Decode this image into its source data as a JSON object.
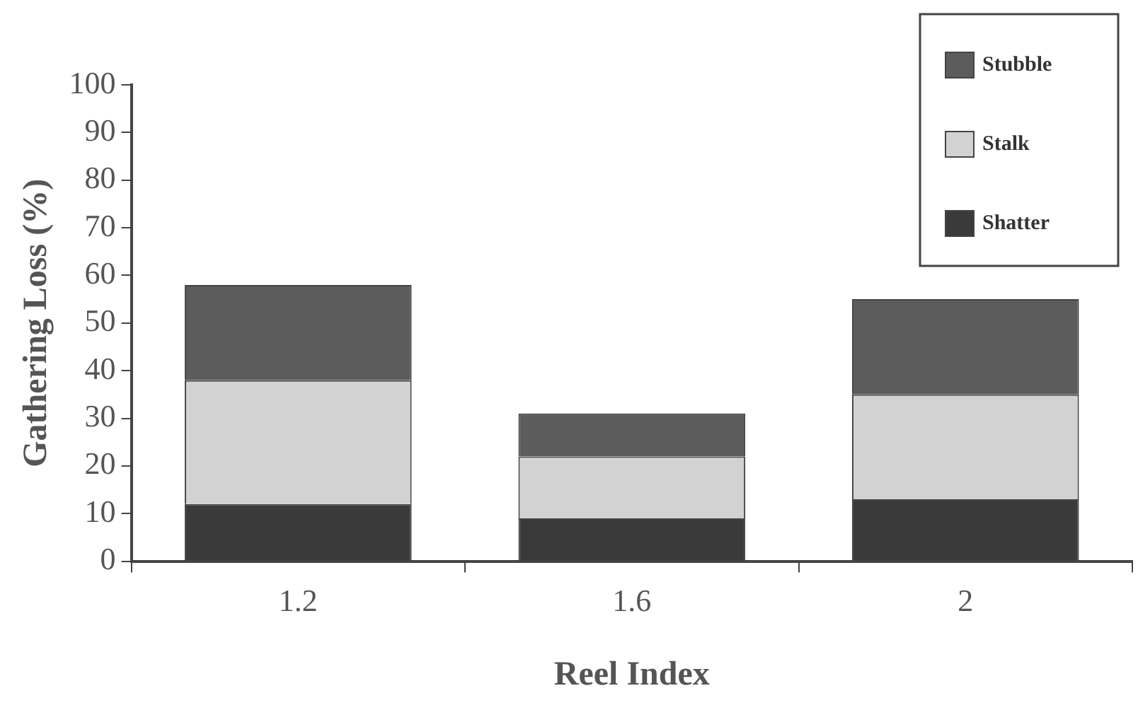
{
  "chart_data": {
    "type": "bar",
    "stacked": true,
    "xlabel": "Reel Index",
    "ylabel": "Gathering Loss (%)",
    "categories": [
      "1.2",
      "1.6",
      "2"
    ],
    "series": [
      {
        "name": "Shatter",
        "color": "#3a3a3a",
        "values": [
          12,
          9,
          13
        ]
      },
      {
        "name": "Stalk",
        "color": "#d2d2d2",
        "values": [
          26,
          13,
          22
        ]
      },
      {
        "name": "Stubble",
        "color": "#5c5c5c",
        "values": [
          20,
          9,
          20
        ]
      }
    ],
    "ylim": [
      0,
      100
    ],
    "yticks": [
      0,
      10,
      20,
      30,
      40,
      50,
      60,
      70,
      80,
      90,
      100
    ],
    "legend": "top right",
    "grid": false
  }
}
